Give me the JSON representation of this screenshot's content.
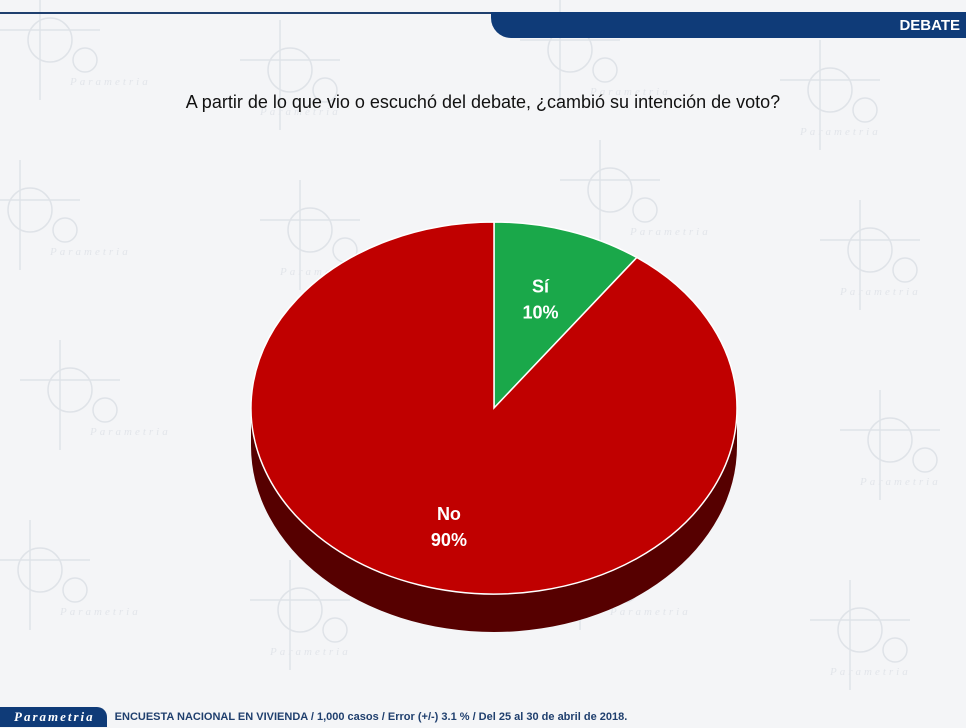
{
  "header": {
    "banner_text": "DEBATE"
  },
  "watermark": {
    "text": "Parametria"
  },
  "chart_data": {
    "type": "pie",
    "title": "A partir de lo que vio o escuchó del debate, ¿cambió su intención de voto?",
    "slices": [
      {
        "label": "Sí",
        "value": 10,
        "value_label": "10%",
        "color": "#1aa84a"
      },
      {
        "label": "No",
        "value": 90,
        "value_label": "90%",
        "color": "#c00000"
      }
    ],
    "legend": "none"
  },
  "footer": {
    "brand": "Parametria",
    "text": "ENCUESTA NACIONAL EN VIVIENDA / 1,000 casos / Error (+/-) 3.1 % / Del 25 al 30 de abril de 2018."
  }
}
